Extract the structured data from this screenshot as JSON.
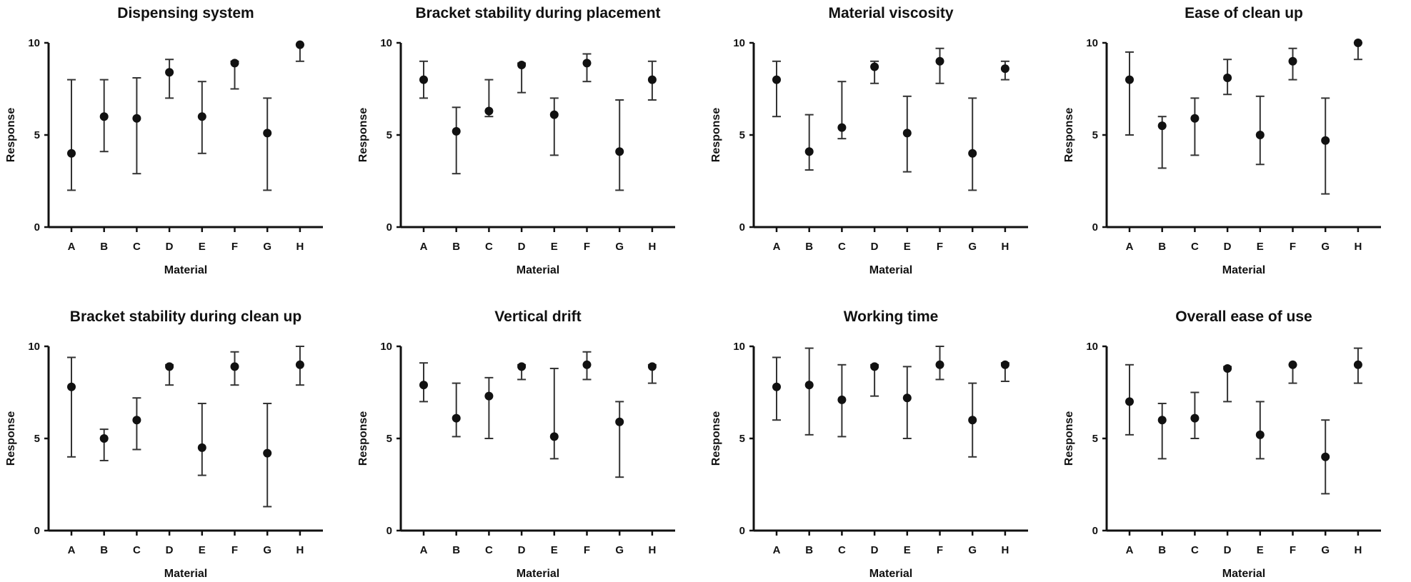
{
  "chart_data": [
    {
      "type": "scatter",
      "title": "Dispensing system",
      "xlabel": "Material",
      "ylabel": "Response",
      "ylim": [
        0,
        10
      ],
      "yticks": [
        0,
        5,
        10
      ],
      "categories": [
        "A",
        "B",
        "C",
        "D",
        "E",
        "F",
        "G",
        "H"
      ],
      "values": [
        4,
        6,
        5.9,
        8.4,
        6,
        8.9,
        5.1,
        9.9
      ],
      "err_low": [
        2,
        4.1,
        2.9,
        7,
        4,
        7.5,
        2,
        9
      ],
      "err_high": [
        8,
        8,
        8.1,
        9.1,
        7.9,
        9,
        7,
        9.9
      ]
    },
    {
      "type": "scatter",
      "title": "Bracket stability during placement",
      "xlabel": "Material",
      "ylabel": "Response",
      "ylim": [
        0,
        10
      ],
      "yticks": [
        0,
        5,
        10
      ],
      "categories": [
        "A",
        "B",
        "C",
        "D",
        "E",
        "F",
        "G",
        "H"
      ],
      "values": [
        8,
        5.2,
        6.3,
        8.8,
        6.1,
        8.9,
        4.1,
        8
      ],
      "err_low": [
        7,
        2.9,
        6,
        7.3,
        3.9,
        7.9,
        2,
        6.9
      ],
      "err_high": [
        9,
        6.5,
        8,
        8.9,
        7,
        9.4,
        6.9,
        9
      ]
    },
    {
      "type": "scatter",
      "title": "Material viscosity",
      "xlabel": "Material",
      "ylabel": "Response",
      "ylim": [
        0,
        10
      ],
      "yticks": [
        0,
        5,
        10
      ],
      "categories": [
        "A",
        "B",
        "C",
        "D",
        "E",
        "F",
        "G",
        "H"
      ],
      "values": [
        8,
        4.1,
        5.4,
        8.7,
        5.1,
        9,
        4,
        8.6
      ],
      "err_low": [
        6,
        3.1,
        4.8,
        7.8,
        3,
        7.8,
        2,
        8
      ],
      "err_high": [
        9,
        6.1,
        7.9,
        9,
        7.1,
        9.7,
        7,
        9
      ]
    },
    {
      "type": "scatter",
      "title": "Ease of clean up",
      "xlabel": "Material",
      "ylabel": "Response",
      "ylim": [
        0,
        10
      ],
      "yticks": [
        0,
        5,
        10
      ],
      "categories": [
        "A",
        "B",
        "C",
        "D",
        "E",
        "F",
        "G",
        "H"
      ],
      "values": [
        8,
        5.5,
        5.9,
        8.1,
        5,
        9,
        4.7,
        10
      ],
      "err_low": [
        5,
        3.2,
        3.9,
        7.2,
        3.4,
        8,
        1.8,
        9.1
      ],
      "err_high": [
        9.5,
        6,
        7,
        9.1,
        7.1,
        9.7,
        7,
        10
      ]
    },
    {
      "type": "scatter",
      "title": "Bracket stability during clean up",
      "xlabel": "Material",
      "ylabel": "Response",
      "ylim": [
        0,
        10
      ],
      "yticks": [
        0,
        5,
        10
      ],
      "categories": [
        "A",
        "B",
        "C",
        "D",
        "E",
        "F",
        "G",
        "H"
      ],
      "values": [
        7.8,
        5,
        6,
        8.9,
        4.5,
        8.9,
        4.2,
        9
      ],
      "err_low": [
        4,
        3.8,
        4.4,
        7.9,
        3,
        7.9,
        1.3,
        7.9
      ],
      "err_high": [
        9.4,
        5.5,
        7.2,
        9,
        6.9,
        9.7,
        6.9,
        10
      ]
    },
    {
      "type": "scatter",
      "title": "Vertical drift",
      "xlabel": "Material",
      "ylabel": "Response",
      "ylim": [
        0,
        10
      ],
      "yticks": [
        0,
        5,
        10
      ],
      "categories": [
        "A",
        "B",
        "C",
        "D",
        "E",
        "F",
        "G",
        "H"
      ],
      "values": [
        7.9,
        6.1,
        7.3,
        8.9,
        5.1,
        9,
        5.9,
        8.9
      ],
      "err_low": [
        7,
        5.1,
        5,
        8.2,
        3.9,
        8.2,
        2.9,
        8
      ],
      "err_high": [
        9.1,
        8,
        8.3,
        9,
        8.8,
        9.7,
        7,
        9
      ]
    },
    {
      "type": "scatter",
      "title": "Working time",
      "xlabel": "Material",
      "ylabel": "Response",
      "ylim": [
        0,
        10
      ],
      "yticks": [
        0,
        5,
        10
      ],
      "categories": [
        "A",
        "B",
        "C",
        "D",
        "E",
        "F",
        "G",
        "H"
      ],
      "values": [
        7.8,
        7.9,
        7.1,
        8.9,
        7.2,
        9,
        6,
        9
      ],
      "err_low": [
        6,
        5.2,
        5.1,
        7.3,
        5,
        8.2,
        4,
        8.1
      ],
      "err_high": [
        9.4,
        9.9,
        9,
        9,
        8.9,
        10,
        8,
        9.1
      ]
    },
    {
      "type": "scatter",
      "title": "Overall ease of use",
      "xlabel": "Material",
      "ylabel": "Response",
      "ylim": [
        0,
        10
      ],
      "yticks": [
        0,
        5,
        10
      ],
      "categories": [
        "A",
        "B",
        "C",
        "D",
        "E",
        "F",
        "G",
        "H"
      ],
      "values": [
        7,
        6,
        6.1,
        8.8,
        5.2,
        9,
        4,
        9
      ],
      "err_low": [
        5.2,
        3.9,
        5,
        7,
        3.9,
        8,
        2,
        8
      ],
      "err_high": [
        9,
        6.9,
        7.5,
        8.9,
        7,
        9,
        6,
        9.9
      ]
    }
  ]
}
